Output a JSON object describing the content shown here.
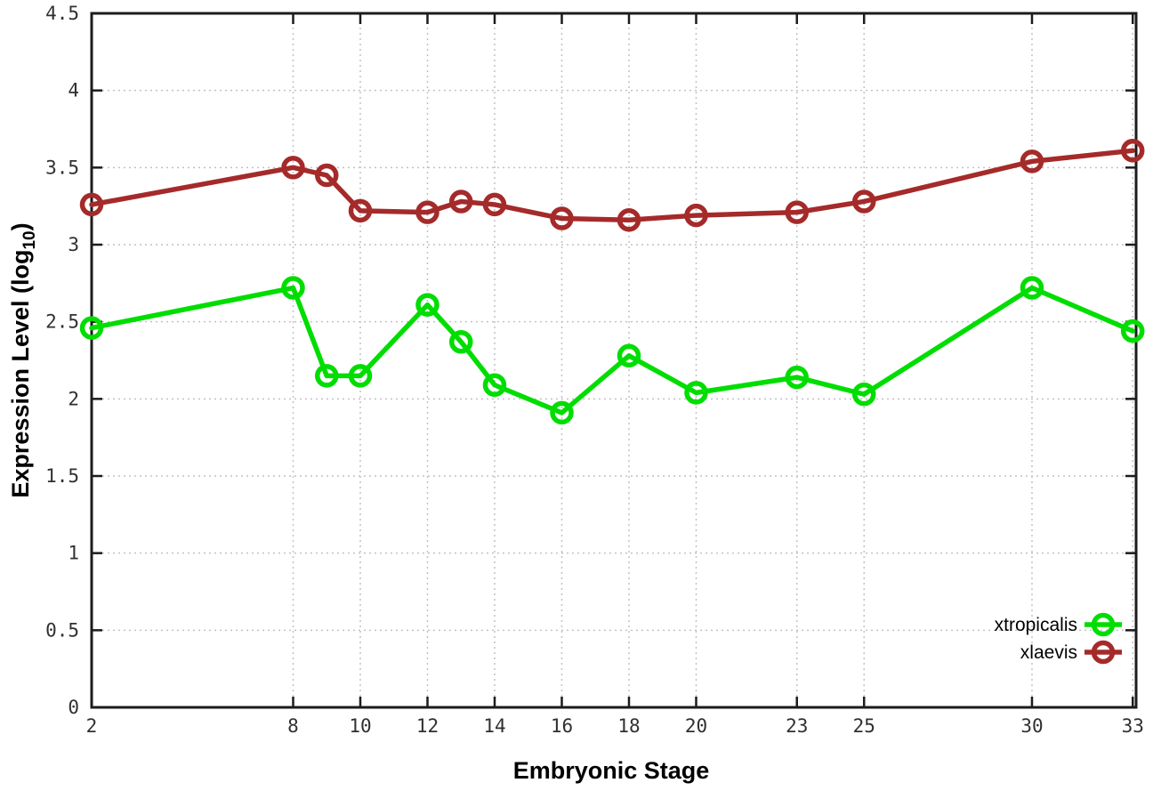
{
  "chart_data": {
    "type": "line",
    "title": "",
    "xlabel": "Embryonic Stage",
    "ylabel": "Expression Level (log10)",
    "ylabel_parts": {
      "prefix": "Expression Level (log",
      "subscript": "10",
      "suffix": ")"
    },
    "x": [
      2,
      8,
      9,
      10,
      12,
      13,
      14,
      16,
      18,
      20,
      23,
      25,
      30,
      33
    ],
    "x_tick_labels": [
      2,
      8,
      10,
      12,
      14,
      16,
      18,
      20,
      23,
      25,
      30,
      33
    ],
    "y_ticks": [
      0,
      0.5,
      1,
      1.5,
      2,
      2.5,
      3,
      3.5,
      4,
      4.5
    ],
    "xlim": [
      2,
      33.1
    ],
    "ylim": [
      0,
      4.5
    ],
    "grid": true,
    "legend_position": "bottom-right",
    "series": [
      {
        "name": "xtropicalis",
        "color": "#00dd00",
        "values": [
          2.46,
          2.72,
          2.15,
          2.15,
          2.61,
          2.37,
          2.09,
          1.91,
          2.28,
          2.04,
          2.14,
          2.03,
          2.72,
          2.44
        ]
      },
      {
        "name": "xlaevis",
        "color": "#a52a2a",
        "values": [
          3.26,
          3.5,
          3.45,
          3.22,
          3.21,
          3.28,
          3.26,
          3.17,
          3.16,
          3.19,
          3.21,
          3.28,
          3.54,
          3.61
        ]
      }
    ]
  },
  "colors": {
    "background": "#ffffff",
    "axis": "#1c1c1c",
    "grid": "#c2c2c2",
    "tick_label": "#303030"
  }
}
